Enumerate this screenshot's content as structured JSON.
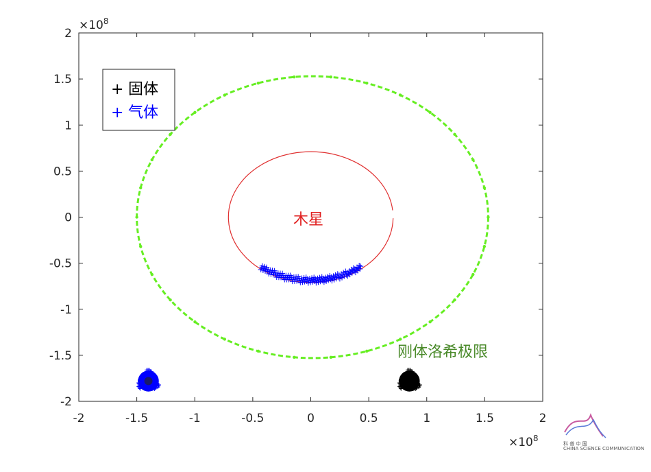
{
  "chart_data": {
    "type": "scatter",
    "title": "",
    "xlabel": "",
    "ylabel": "",
    "xlim": [
      -200000000.0,
      200000000.0
    ],
    "ylim": [
      -200000000.0,
      200000000.0
    ],
    "x_ticks": [
      "-2",
      "-1.5",
      "-1",
      "-0.5",
      "0",
      "0.5",
      "1",
      "1.5",
      "2"
    ],
    "y_ticks": [
      "2",
      "1.5",
      "1",
      "0.5",
      "0",
      "-0.5",
      "-1",
      "-1.5",
      "-2"
    ],
    "x_exponent": "×10",
    "x_exponent_power": "8",
    "y_exponent": "×10",
    "y_exponent_power": "8",
    "grid": false,
    "legend_position": "top-left",
    "legend": [
      {
        "marker": "+",
        "label": "固体",
        "color": "#000000"
      },
      {
        "marker": "+",
        "label": "气体",
        "color": "#0000ff"
      }
    ],
    "annotations": [
      {
        "text": "木星",
        "x": 0,
        "y": 0,
        "color": "#e02020"
      },
      {
        "text": "刚体洛希极限",
        "x": 165000000.0,
        "y": -145000000.0,
        "color": "#4a8a2a"
      }
    ],
    "series": [
      {
        "name": "Jupiter orbit",
        "kind": "arc",
        "color": "#e03030",
        "center": [
          0,
          0
        ],
        "radius": 71000000.0,
        "start_deg": 6,
        "end_deg": 359
      },
      {
        "name": "Rigid-body Roche limit",
        "kind": "dashed-circle",
        "color": "#66ee22",
        "center": [
          1500000.0,
          0
        ],
        "radius": 151500000.0,
        "y_radius": 153000000.0
      },
      {
        "name": "气体",
        "kind": "markers",
        "color": "#0000ff",
        "band_x_range": [
          -43000000.0,
          43000000.0
        ],
        "band_y_center": -66000000.0
      },
      {
        "name": "固体 cluster",
        "kind": "blob",
        "color": "#000000",
        "center": [
          85000000.0,
          -178000000.0
        ],
        "radius": 10000000.0
      },
      {
        "name": "气体 cluster",
        "kind": "blob",
        "color": "#0000ff",
        "center": [
          -140000000.0,
          -178000000.0
        ],
        "radius": 10000000.0
      }
    ]
  },
  "logo": {
    "cn": "科 普 中 国",
    "en": "CHINA SCIENCE COMMUNICATION"
  }
}
